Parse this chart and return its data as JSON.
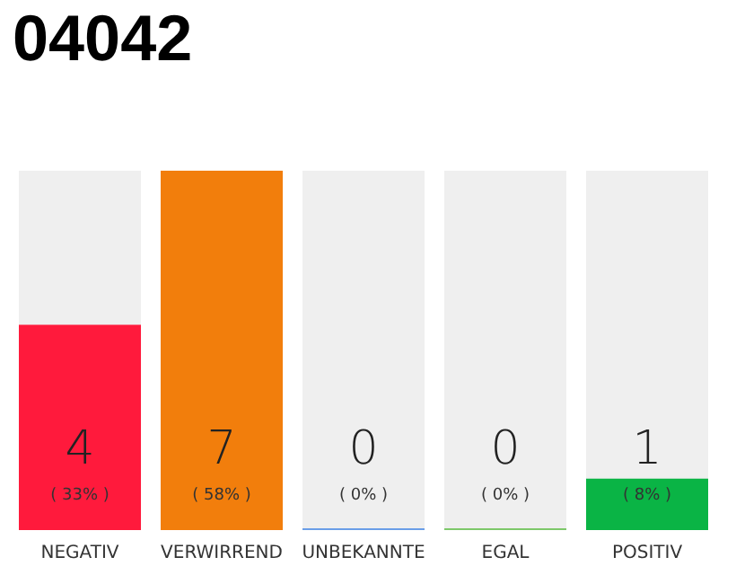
{
  "chart_data": {
    "type": "bar",
    "title": "04042",
    "categories": [
      "NEGATIV",
      "VERWIRREND",
      "UNBEKANNTE",
      "EGAL",
      "POSITIV"
    ],
    "values": [
      4,
      7,
      0,
      0,
      1
    ],
    "colors": [
      "#ff1a3c",
      "#f27e0c",
      "#6a9ee8",
      "#7ec86a",
      "#0ab445"
    ],
    "value_labels": [
      "4\n( 33% )",
      "7\n( 58% )",
      "0\n( 0% )",
      "0\n( 0% )",
      "1\n( 8% )"
    ],
    "ylim": [
      0,
      7
    ],
    "tick_labels": "x"
  }
}
